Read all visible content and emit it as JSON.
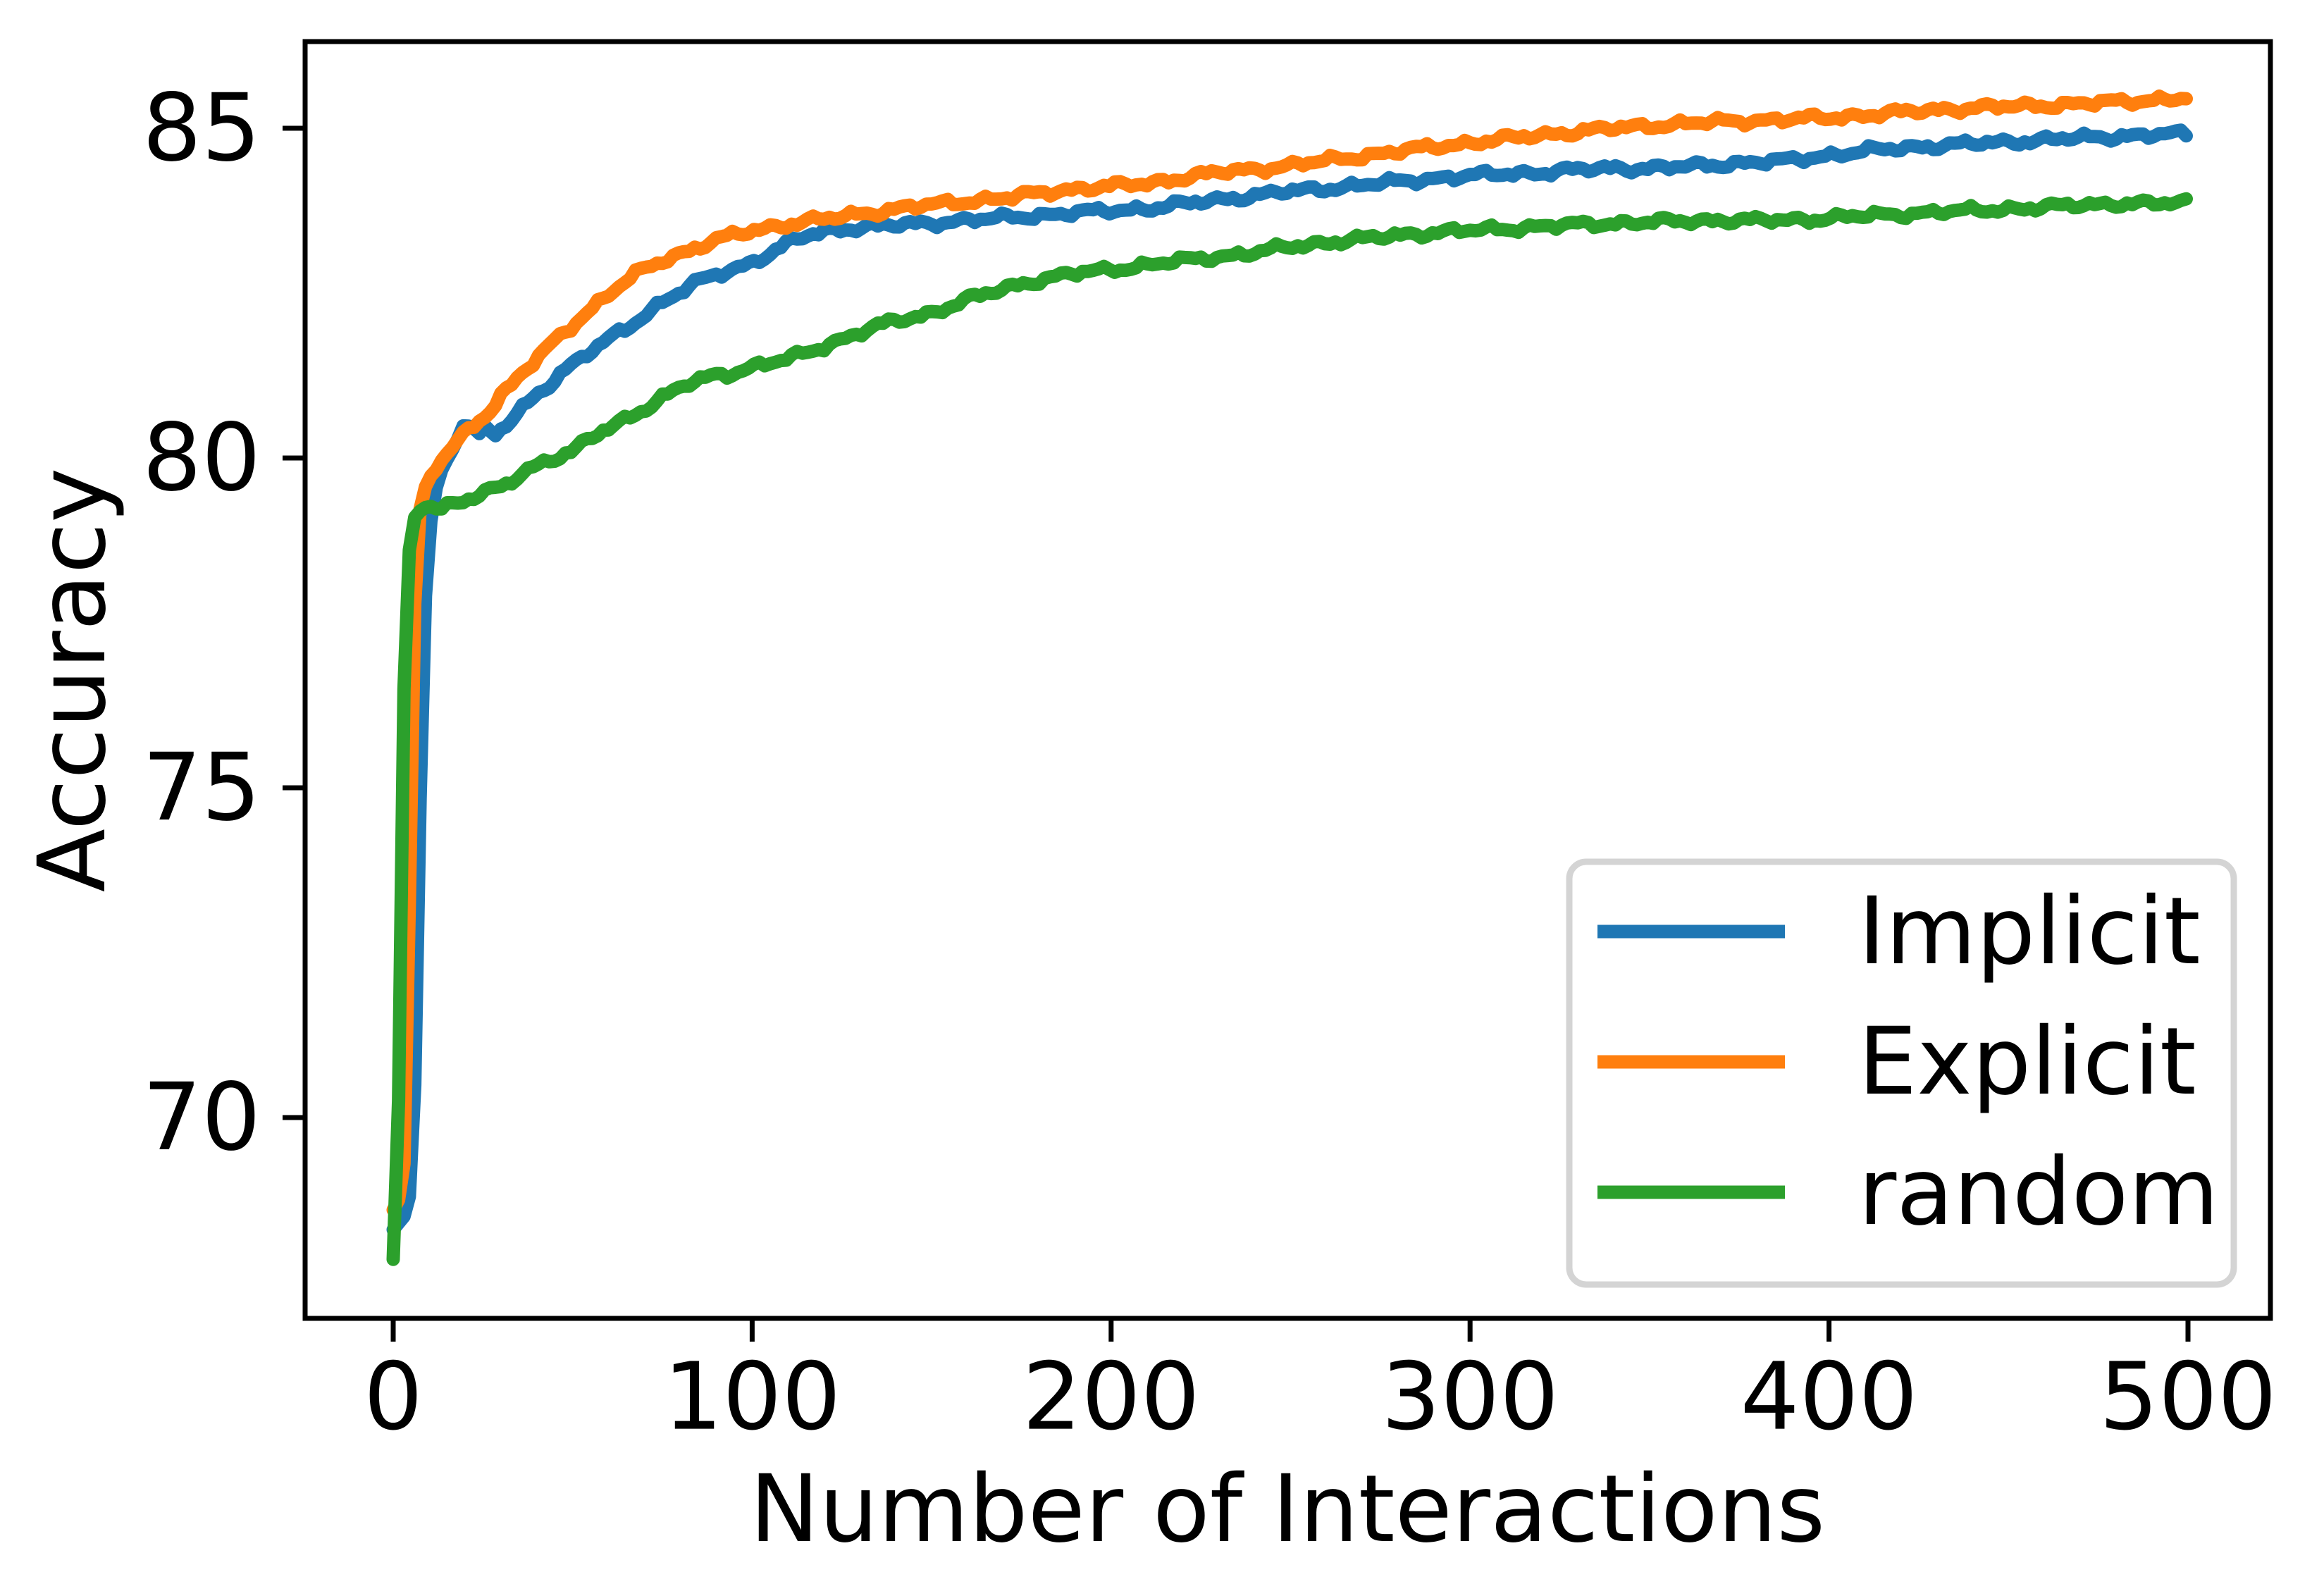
{
  "figure": {
    "background": "#ffffff",
    "axis_color": "#000000"
  },
  "chart_data": {
    "type": "line",
    "title": "",
    "xlabel": "Number of Interactions",
    "ylabel": "Accuracy",
    "xlim": [
      -25,
      523
    ],
    "ylim": [
      66.9,
      86.3
    ],
    "x_ticks": [
      "0",
      "100",
      "200",
      "300",
      "400",
      "500"
    ],
    "x_tick_values": [
      0,
      100,
      200,
      300,
      400,
      500
    ],
    "y_ticks": [
      "70",
      "75",
      "80",
      "85"
    ],
    "y_tick_values": [
      70,
      75,
      80,
      85
    ],
    "grid": false,
    "legend": {
      "position": "lower right",
      "entries": [
        "Implicit",
        "Explicit",
        "random"
      ],
      "border_color": "#d4d4d4"
    },
    "series": [
      {
        "name": "Implicit",
        "color": "#1f77b4",
        "points": [
          [
            0,
            68.3
          ],
          [
            3,
            68.5
          ],
          [
            5,
            68.9
          ],
          [
            6,
            70.5
          ],
          [
            7,
            73.5
          ],
          [
            8,
            76.2
          ],
          [
            9,
            77.9
          ],
          [
            10,
            78.8
          ],
          [
            11,
            79.3
          ],
          [
            12,
            79.55
          ],
          [
            14,
            79.85
          ],
          [
            16,
            80.1
          ],
          [
            18,
            80.35
          ],
          [
            20,
            80.55
          ],
          [
            22,
            80.5
          ],
          [
            24,
            80.33
          ],
          [
            26,
            80.47
          ],
          [
            28,
            80.32
          ],
          [
            30,
            80.42
          ],
          [
            33,
            80.58
          ],
          [
            36,
            80.75
          ],
          [
            40,
            80.97
          ],
          [
            44,
            81.15
          ],
          [
            48,
            81.35
          ],
          [
            52,
            81.5
          ],
          [
            56,
            81.65
          ],
          [
            60,
            81.8
          ],
          [
            65,
            81.97
          ],
          [
            70,
            82.17
          ],
          [
            75,
            82.37
          ],
          [
            80,
            82.52
          ],
          [
            85,
            82.67
          ],
          [
            90,
            82.78
          ],
          [
            95,
            82.87
          ],
          [
            100,
            82.97
          ],
          [
            105,
            83.1
          ],
          [
            110,
            83.25
          ],
          [
            115,
            83.37
          ],
          [
            120,
            83.44
          ],
          [
            126,
            83.48
          ],
          [
            133,
            83.51
          ],
          [
            140,
            83.53
          ],
          [
            148,
            83.56
          ],
          [
            156,
            83.59
          ],
          [
            164,
            83.62
          ],
          [
            172,
            83.65
          ],
          [
            180,
            83.68
          ],
          [
            190,
            83.72
          ],
          [
            200,
            83.75
          ],
          [
            211,
            83.79
          ],
          [
            220,
            83.85
          ],
          [
            230,
            83.92
          ],
          [
            240,
            83.98
          ],
          [
            249,
            84.04
          ],
          [
            260,
            84.09
          ],
          [
            270,
            84.14
          ],
          [
            280,
            84.19
          ],
          [
            290,
            84.24
          ],
          [
            300,
            84.28
          ],
          [
            310,
            84.31
          ],
          [
            320,
            84.33
          ],
          [
            330,
            84.37
          ],
          [
            340,
            84.4
          ],
          [
            350,
            84.39
          ],
          [
            357,
            84.41
          ],
          [
            365,
            84.44
          ],
          [
            375,
            84.47
          ],
          [
            386,
            84.5
          ],
          [
            395,
            84.56
          ],
          [
            405,
            84.62
          ],
          [
            415,
            84.68
          ],
          [
            425,
            84.72
          ],
          [
            435,
            84.75
          ],
          [
            445,
            84.78
          ],
          [
            455,
            84.81
          ],
          [
            465,
            84.84
          ],
          [
            473,
            84.86
          ],
          [
            481,
            84.88
          ],
          [
            490,
            84.9
          ],
          [
            500,
            84.91
          ]
        ]
      },
      {
        "name": "Explicit",
        "color": "#ff7f0e",
        "points": [
          [
            0,
            68.6
          ],
          [
            2,
            68.8
          ],
          [
            3,
            69.3
          ],
          [
            4,
            71.5
          ],
          [
            5,
            75.0
          ],
          [
            6,
            77.8
          ],
          [
            7,
            79.0
          ],
          [
            8,
            79.4
          ],
          [
            10,
            79.65
          ],
          [
            12,
            79.85
          ],
          [
            14,
            80.0
          ],
          [
            16,
            80.15
          ],
          [
            18,
            80.27
          ],
          [
            20,
            80.38
          ],
          [
            22,
            80.48
          ],
          [
            25,
            80.62
          ],
          [
            28,
            80.8
          ],
          [
            30,
            80.95
          ],
          [
            33,
            81.1
          ],
          [
            36,
            81.28
          ],
          [
            40,
            81.5
          ],
          [
            44,
            81.73
          ],
          [
            48,
            81.93
          ],
          [
            52,
            82.12
          ],
          [
            56,
            82.3
          ],
          [
            60,
            82.48
          ],
          [
            65,
            82.68
          ],
          [
            70,
            82.87
          ],
          [
            75,
            83.0
          ],
          [
            80,
            83.1
          ],
          [
            85,
            83.2
          ],
          [
            90,
            83.3
          ],
          [
            95,
            83.38
          ],
          [
            100,
            83.45
          ],
          [
            107,
            83.52
          ],
          [
            114,
            83.58
          ],
          [
            120,
            83.62
          ],
          [
            127,
            83.68
          ],
          [
            134,
            83.73
          ],
          [
            141,
            83.78
          ],
          [
            148,
            83.83
          ],
          [
            155,
            83.87
          ],
          [
            163,
            83.91
          ],
          [
            172,
            83.95
          ],
          [
            180,
            84.02
          ],
          [
            190,
            84.08
          ],
          [
            200,
            84.12
          ],
          [
            211,
            84.17
          ],
          [
            220,
            84.25
          ],
          [
            230,
            84.33
          ],
          [
            240,
            84.38
          ],
          [
            249,
            84.43
          ],
          [
            260,
            84.51
          ],
          [
            270,
            84.58
          ],
          [
            280,
            84.65
          ],
          [
            290,
            84.72
          ],
          [
            300,
            84.78
          ],
          [
            310,
            84.84
          ],
          [
            320,
            84.9
          ],
          [
            330,
            84.95
          ],
          [
            340,
            85.0
          ],
          [
            350,
            85.04
          ],
          [
            360,
            85.07
          ],
          [
            370,
            85.1
          ],
          [
            380,
            85.12
          ],
          [
            390,
            85.14
          ],
          [
            400,
            85.16
          ],
          [
            410,
            85.2
          ],
          [
            420,
            85.24
          ],
          [
            430,
            85.28
          ],
          [
            440,
            85.31
          ],
          [
            450,
            85.33
          ],
          [
            460,
            85.35
          ],
          [
            470,
            85.37
          ],
          [
            480,
            85.4
          ],
          [
            490,
            85.43
          ],
          [
            500,
            85.46
          ]
        ]
      },
      {
        "name": "random",
        "color": "#2ca02c",
        "points": [
          [
            0,
            67.85
          ],
          [
            1,
            68.5
          ],
          [
            2,
            72.0
          ],
          [
            3,
            76.5
          ],
          [
            4,
            78.3
          ],
          [
            5,
            78.9
          ],
          [
            6,
            79.1
          ],
          [
            8,
            79.25
          ],
          [
            10,
            79.3
          ],
          [
            12,
            79.27
          ],
          [
            14,
            79.25
          ],
          [
            16,
            79.3
          ],
          [
            18,
            79.32
          ],
          [
            20,
            79.35
          ],
          [
            23,
            79.42
          ],
          [
            26,
            79.48
          ],
          [
            29,
            79.53
          ],
          [
            32,
            79.6
          ],
          [
            35,
            79.75
          ],
          [
            38,
            79.85
          ],
          [
            41,
            79.92
          ],
          [
            44,
            79.98
          ],
          [
            47,
            80.04
          ],
          [
            50,
            80.1
          ],
          [
            54,
            80.25
          ],
          [
            58,
            80.4
          ],
          [
            62,
            80.52
          ],
          [
            66,
            80.63
          ],
          [
            70,
            80.75
          ],
          [
            74,
            80.88
          ],
          [
            78,
            81.0
          ],
          [
            82,
            81.12
          ],
          [
            86,
            81.2
          ],
          [
            90,
            81.26
          ],
          [
            95,
            81.3
          ],
          [
            100,
            81.38
          ],
          [
            105,
            81.44
          ],
          [
            110,
            81.5
          ],
          [
            115,
            81.6
          ],
          [
            120,
            81.7
          ],
          [
            125,
            81.8
          ],
          [
            130,
            81.9
          ],
          [
            135,
            82.0
          ],
          [
            140,
            82.08
          ],
          [
            145,
            82.14
          ],
          [
            150,
            82.2
          ],
          [
            155,
            82.3
          ],
          [
            160,
            82.4
          ],
          [
            166,
            82.5
          ],
          [
            172,
            82.6
          ],
          [
            178,
            82.68
          ],
          [
            184,
            82.74
          ],
          [
            190,
            82.8
          ],
          [
            196,
            82.84
          ],
          [
            203,
            82.88
          ],
          [
            211,
            82.93
          ],
          [
            218,
            82.98
          ],
          [
            225,
            83.03
          ],
          [
            233,
            83.07
          ],
          [
            241,
            83.12
          ],
          [
            249,
            83.2
          ],
          [
            260,
            83.27
          ],
          [
            270,
            83.32
          ],
          [
            280,
            83.38
          ],
          [
            290,
            83.42
          ],
          [
            300,
            83.45
          ],
          [
            310,
            83.48
          ],
          [
            320,
            83.51
          ],
          [
            330,
            83.54
          ],
          [
            340,
            83.56
          ],
          [
            350,
            83.58
          ],
          [
            360,
            83.59
          ],
          [
            370,
            83.61
          ],
          [
            380,
            83.6
          ],
          [
            390,
            83.61
          ],
          [
            400,
            83.64
          ],
          [
            410,
            83.67
          ],
          [
            420,
            83.7
          ],
          [
            430,
            83.73
          ],
          [
            440,
            83.75
          ],
          [
            450,
            83.78
          ],
          [
            460,
            83.8
          ],
          [
            470,
            83.84
          ],
          [
            480,
            83.86
          ],
          [
            490,
            83.85
          ],
          [
            500,
            83.88
          ]
        ]
      }
    ]
  }
}
